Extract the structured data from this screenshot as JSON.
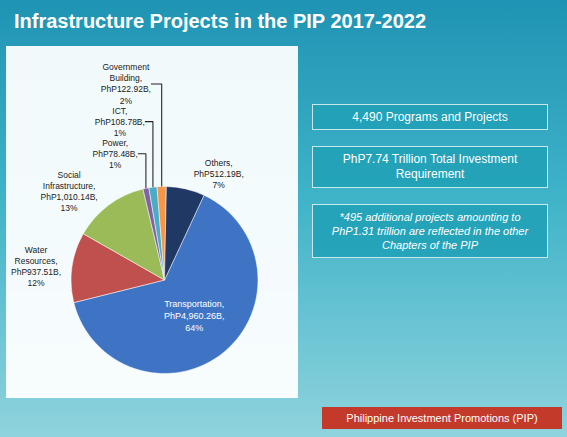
{
  "chart_data": {
    "type": "pie",
    "title": "Infrastructure Projects in the PIP 2017-2022",
    "categories": [
      "Transportation",
      "Water Resources",
      "Social Infrastructure",
      "Power",
      "ICT",
      "Government Building",
      "Others"
    ],
    "values": [
      4960.26,
      937.51,
      1010.14,
      78.48,
      108.78,
      122.92,
      512.19
    ],
    "value_labels": [
      "Transportation, PhP4,960.26B, 64%",
      "Water Resources, PhP937.51B, 12%",
      "Social Infrastructure, PhP1,010.14B, 13%",
      "Power, PhP78.48B, 1%",
      "ICT, PhP108.78B, 1%",
      "Government Building, PhP122.92B, 2%",
      "Others, PhP512.19B, 7%"
    ],
    "colors": [
      "#3f74c4",
      "#c0504d",
      "#9bbb59",
      "#8064a2",
      "#4bacc6",
      "#f79646",
      "#1f3864"
    ],
    "data_labels": true
  },
  "boxes": [
    "4,490 Programs and Projects",
    "PhP7.74 Trillion Total Investment Requirement",
    "*495 additional projects amounting to PhP1.31 trillion are reflected in the other Chapters of the PIP"
  ],
  "footer": "Philippine Investment Promotions (PIP)"
}
